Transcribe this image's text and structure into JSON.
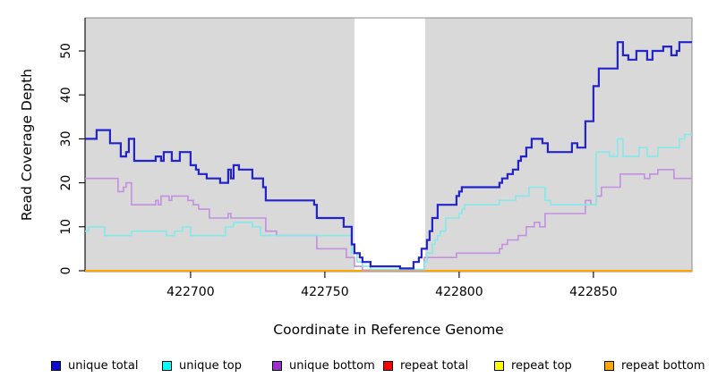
{
  "chart_data": {
    "type": "line",
    "subtype": "step-coverage-plot",
    "title": "",
    "xlabel": "Coordinate in Reference Genome",
    "ylabel": "Read Coverage Depth",
    "xlim": [
      422660.7,
      422886.7
    ],
    "ylim": [
      0,
      50
    ],
    "x_ticks": [
      422700,
      422750,
      422800,
      422850
    ],
    "x_tick_labels": [
      "422700",
      "422750",
      "422800",
      "422850"
    ],
    "y_ticks": [
      0,
      10,
      20,
      30,
      40,
      50
    ],
    "y_tick_labels": [
      "0",
      "10",
      "20",
      "30",
      "40",
      "50"
    ],
    "grid": false,
    "panel_background": "#d9d9d9",
    "panel_border": "#8a8a8a",
    "highlight_region": {
      "x0": 422761,
      "x1": 422787.3,
      "color": "#ffffff"
    },
    "legend_position": "bottom",
    "series": [
      {
        "name": "unique total",
        "color": "#2323cd",
        "legend_color": "#0b0bcd",
        "width": 2.2,
        "zero_lift": 2.6,
        "points": [
          [
            422661,
            30
          ],
          [
            422665,
            32
          ],
          [
            422670,
            29
          ],
          [
            422674,
            26
          ],
          [
            422676,
            27
          ],
          [
            422677,
            30
          ],
          [
            422679,
            25
          ],
          [
            422687,
            26
          ],
          [
            422689,
            25
          ],
          [
            422690,
            27
          ],
          [
            422693,
            25
          ],
          [
            422696,
            27
          ],
          [
            422700,
            24
          ],
          [
            422702,
            23
          ],
          [
            422703,
            22
          ],
          [
            422706,
            21
          ],
          [
            422711,
            20
          ],
          [
            422714,
            23
          ],
          [
            422715,
            21
          ],
          [
            422716,
            24
          ],
          [
            422718,
            23
          ],
          [
            422723,
            21
          ],
          [
            422727,
            19
          ],
          [
            422728,
            16
          ],
          [
            422746,
            15
          ],
          [
            422747,
            12
          ],
          [
            422757,
            10
          ],
          [
            422760,
            6
          ],
          [
            422761,
            4
          ],
          [
            422763,
            3
          ],
          [
            422764,
            2
          ],
          [
            422767,
            1
          ],
          [
            422778,
            0
          ],
          [
            422783,
            2
          ],
          [
            422785,
            3
          ],
          [
            422786,
            5
          ],
          [
            422788,
            7
          ],
          [
            422789,
            9
          ],
          [
            422790,
            12
          ],
          [
            422792,
            15
          ],
          [
            422799,
            17
          ],
          [
            422800,
            18
          ],
          [
            422801,
            19
          ],
          [
            422815,
            20
          ],
          [
            422816,
            21
          ],
          [
            422818,
            22
          ],
          [
            422820,
            23
          ],
          [
            422822,
            25
          ],
          [
            422823,
            26
          ],
          [
            422825,
            28
          ],
          [
            422827,
            30
          ],
          [
            422831,
            29
          ],
          [
            422833,
            27
          ],
          [
            422842,
            29
          ],
          [
            422844,
            28
          ],
          [
            422847,
            34
          ],
          [
            422850,
            42
          ],
          [
            422852,
            46
          ],
          [
            422859,
            52
          ],
          [
            422861,
            49
          ],
          [
            422863,
            48
          ],
          [
            422866,
            50
          ],
          [
            422870,
            48
          ],
          [
            422872,
            50
          ],
          [
            422876,
            51
          ],
          [
            422879,
            49
          ],
          [
            422881,
            50
          ],
          [
            422882,
            52
          ]
        ]
      },
      {
        "name": "unique top",
        "color": "#84e9e9",
        "legend_color": "#00ffff",
        "width": 1.6,
        "zero_lift": 1.4,
        "points": [
          [
            422661,
            9
          ],
          [
            422662,
            10
          ],
          [
            422668,
            8
          ],
          [
            422678,
            9
          ],
          [
            422691,
            8
          ],
          [
            422694,
            9
          ],
          [
            422697,
            10
          ],
          [
            422700,
            8
          ],
          [
            422713,
            10
          ],
          [
            422716,
            11
          ],
          [
            422723,
            10
          ],
          [
            422726,
            8
          ],
          [
            422760,
            4
          ],
          [
            422762,
            2
          ],
          [
            422764,
            1
          ],
          [
            422767,
            0
          ],
          [
            422787,
            2
          ],
          [
            422788,
            4
          ],
          [
            422790,
            6
          ],
          [
            422791,
            7
          ],
          [
            422792,
            8
          ],
          [
            422793,
            9
          ],
          [
            422795,
            12
          ],
          [
            422800,
            13
          ],
          [
            422801,
            14
          ],
          [
            422802,
            15
          ],
          [
            422815,
            16
          ],
          [
            422821,
            17
          ],
          [
            422826,
            19
          ],
          [
            422832,
            16
          ],
          [
            422834,
            15
          ],
          [
            422851,
            27
          ],
          [
            422856,
            26
          ],
          [
            422859,
            30
          ],
          [
            422861,
            26
          ],
          [
            422867,
            28
          ],
          [
            422870,
            26
          ],
          [
            422874,
            28
          ],
          [
            422882,
            30
          ],
          [
            422884,
            31
          ]
        ]
      },
      {
        "name": "unique bottom",
        "color": "#c38fe1",
        "legend_color": "#9932cc",
        "width": 1.6,
        "zero_lift": 0.7,
        "points": [
          [
            422661,
            21
          ],
          [
            422673,
            18
          ],
          [
            422675,
            19
          ],
          [
            422676,
            20
          ],
          [
            422678,
            15
          ],
          [
            422687,
            16
          ],
          [
            422688,
            15
          ],
          [
            422689,
            17
          ],
          [
            422692,
            16
          ],
          [
            422693,
            17
          ],
          [
            422699,
            16
          ],
          [
            422701,
            15
          ],
          [
            422703,
            14
          ],
          [
            422707,
            12
          ],
          [
            422714,
            13
          ],
          [
            422715,
            12
          ],
          [
            422728,
            9
          ],
          [
            422732,
            8
          ],
          [
            422747,
            5
          ],
          [
            422758,
            3
          ],
          [
            422761,
            1
          ],
          [
            422764,
            0
          ],
          [
            422787,
            3
          ],
          [
            422799,
            4
          ],
          [
            422815,
            5
          ],
          [
            422816,
            6
          ],
          [
            422818,
            7
          ],
          [
            422822,
            8
          ],
          [
            422825,
            10
          ],
          [
            422828,
            11
          ],
          [
            422830,
            10
          ],
          [
            422832,
            13
          ],
          [
            422847,
            16
          ],
          [
            422849,
            15
          ],
          [
            422851,
            17
          ],
          [
            422853,
            19
          ],
          [
            422860,
            22
          ],
          [
            422869,
            21
          ],
          [
            422871,
            22
          ],
          [
            422874,
            23
          ],
          [
            422880,
            21
          ]
        ]
      },
      {
        "name": "repeat total",
        "color": "#cc0000",
        "legend_color": "#ff0000",
        "width": 1.4,
        "zero_lift": 0,
        "points": [
          [
            422661,
            0
          ]
        ]
      },
      {
        "name": "repeat top",
        "color": "#f5f500",
        "legend_color": "#ffff00",
        "width": 1.4,
        "zero_lift": 0,
        "points": [
          [
            422661,
            0
          ]
        ]
      },
      {
        "name": "repeat bottom",
        "color": "#ffa500",
        "legend_color": "#ffa500",
        "width": 2,
        "zero_lift": 0,
        "points": [
          [
            422661,
            0
          ]
        ]
      }
    ]
  }
}
